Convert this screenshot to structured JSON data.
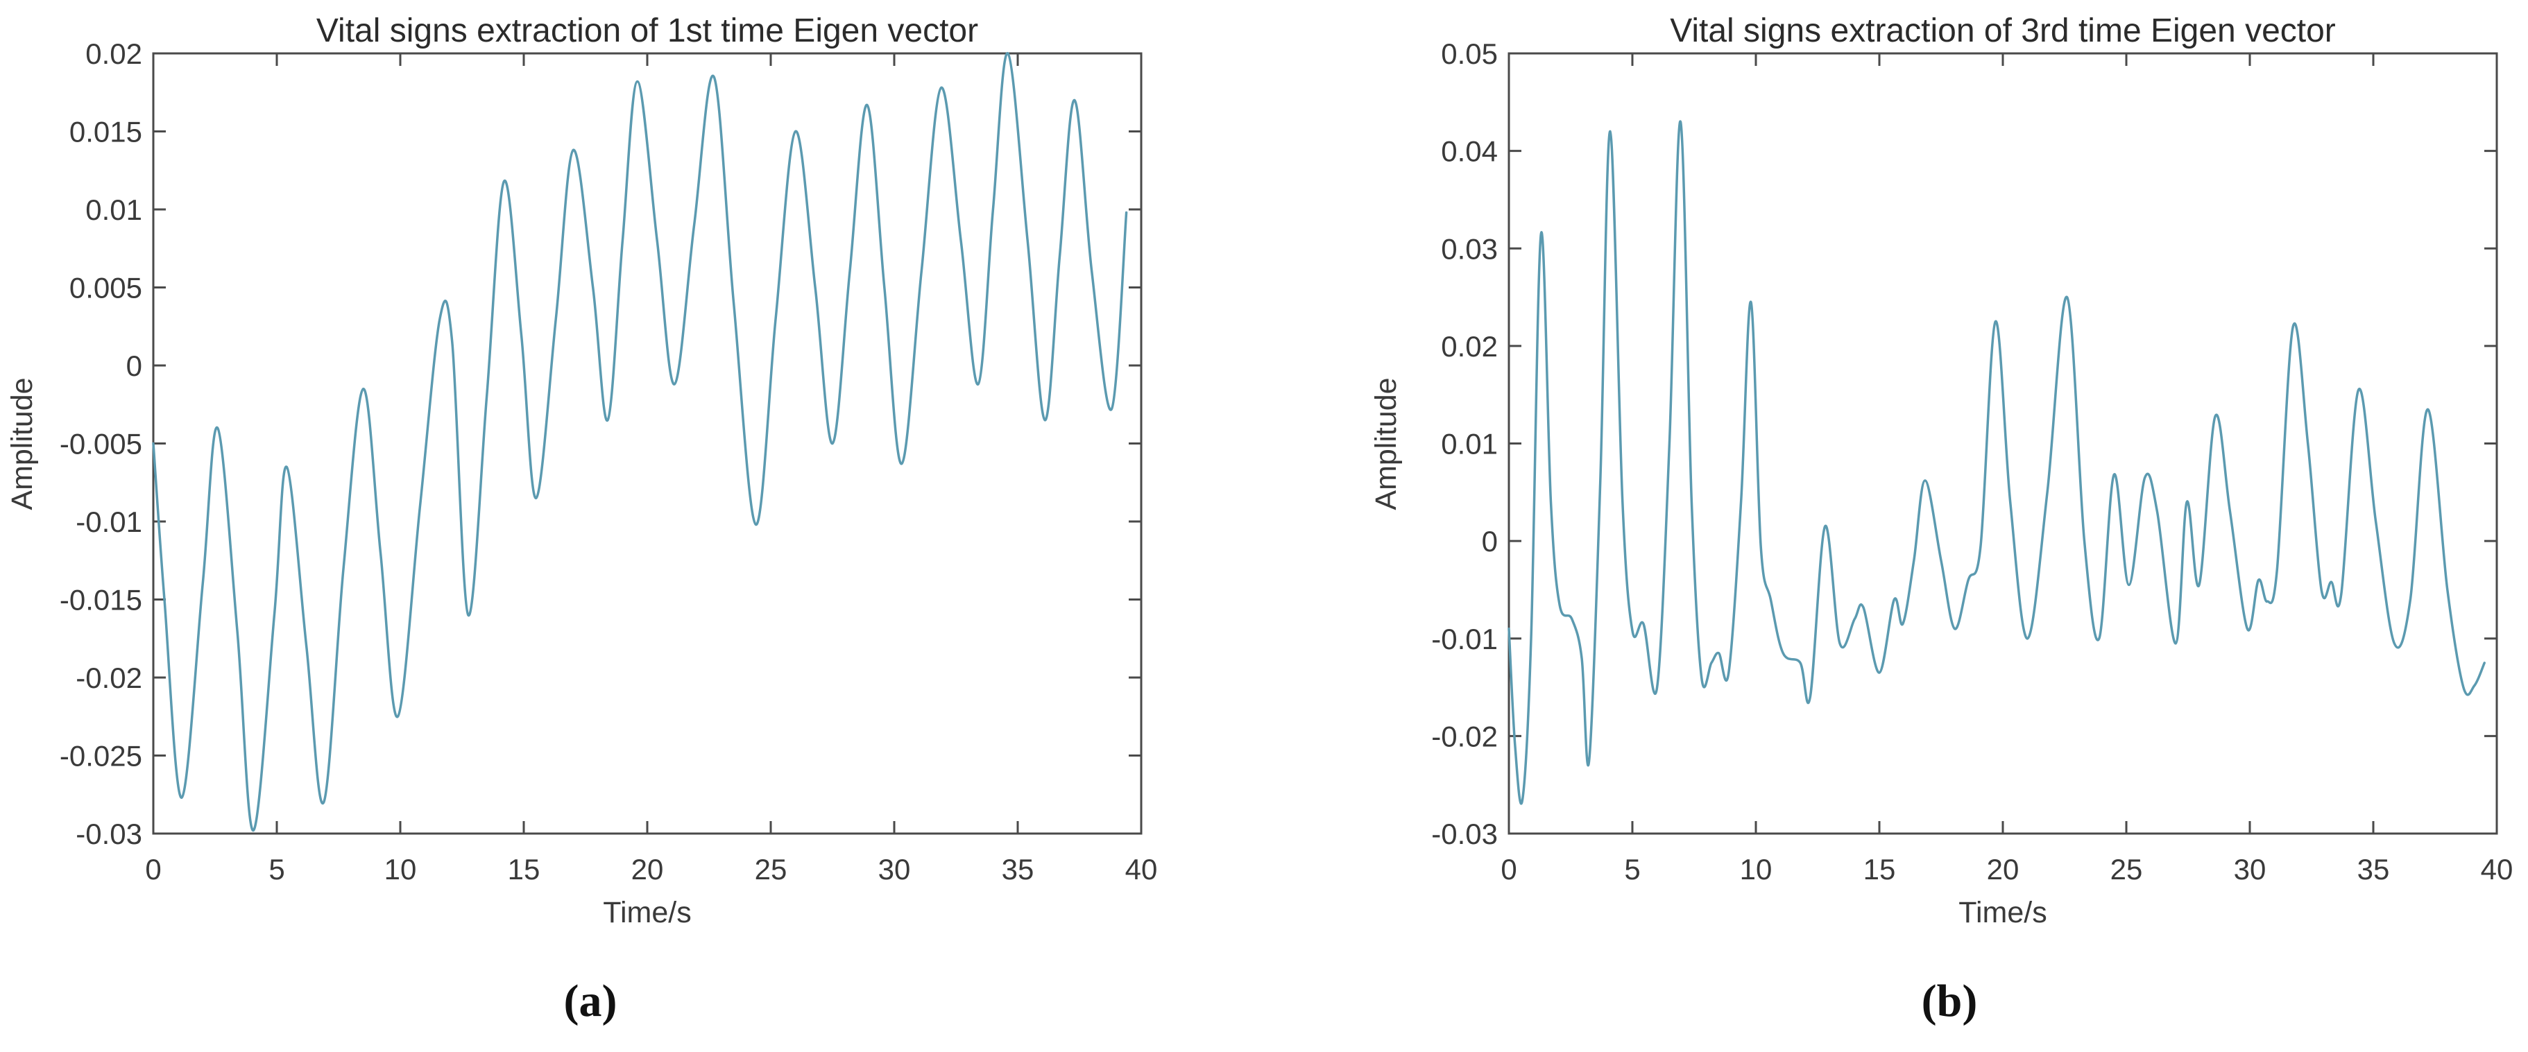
{
  "chart_data": [
    {
      "type": "line",
      "title": "Vital signs extraction of 1st time Eigen vector",
      "xlabel": "Time/s",
      "ylabel": "Amplitude",
      "caption": "(a)",
      "xlim": [
        0,
        40
      ],
      "ylim": [
        -0.03,
        0.02
      ],
      "grid": false,
      "legend": "none",
      "x_tick_values": [
        0,
        5,
        10,
        15,
        20,
        25,
        30,
        35,
        40
      ],
      "x_tick_labels": [
        "0",
        "5",
        "10",
        "15",
        "20",
        "25",
        "30",
        "35",
        "40"
      ],
      "y_tick_values": [
        0.02,
        0.015,
        0.01,
        0.005,
        0,
        -0.005,
        -0.01,
        -0.015,
        -0.02,
        -0.025,
        -0.03
      ],
      "y_tick_labels": [
        "0.02",
        "0.015",
        "0.01",
        "0.005",
        "0",
        "-0.005",
        "-0.01",
        "-0.015",
        "-0.02",
        "-0.025",
        "-0.03"
      ],
      "line_color": "#5b9ab0",
      "axis_color": "#4a4a4a",
      "x": [
        0,
        0.45,
        1.15,
        2.0,
        2.6,
        3.4,
        4.05,
        4.9,
        5.4,
        6.2,
        6.9,
        7.7,
        8.5,
        9.2,
        9.9,
        10.8,
        11.6,
        12.1,
        12.75,
        13.5,
        14.2,
        14.9,
        15.5,
        16.3,
        17.0,
        17.8,
        18.4,
        19.0,
        19.6,
        20.4,
        21.1,
        21.9,
        22.7,
        23.5,
        24.4,
        25.2,
        26.0,
        26.8,
        27.5,
        28.2,
        28.9,
        29.6,
        30.3,
        31.1,
        31.9,
        32.7,
        33.4,
        34.0,
        34.6,
        35.4,
        36.1,
        36.7,
        37.3,
        38.0,
        38.8,
        39.4
      ],
      "y": [
        -0.005,
        -0.015,
        -0.0277,
        -0.014,
        -0.004,
        -0.017,
        -0.0298,
        -0.016,
        -0.0065,
        -0.018,
        -0.028,
        -0.013,
        -0.0015,
        -0.012,
        -0.0225,
        -0.009,
        0.003,
        0.0015,
        -0.016,
        -0.002,
        0.0118,
        0.002,
        -0.0085,
        0.003,
        0.0138,
        0.005,
        -0.0035,
        0.008,
        0.0182,
        0.008,
        -0.0012,
        0.009,
        0.0185,
        0.004,
        -0.0102,
        0.003,
        0.015,
        0.005,
        -0.005,
        0.006,
        0.0167,
        0.005,
        -0.0063,
        0.006,
        0.0178,
        0.008,
        -0.0012,
        0.01,
        0.02,
        0.008,
        -0.0035,
        0.007,
        0.017,
        0.006,
        -0.0028,
        0.0098
      ]
    },
    {
      "type": "line",
      "title": "Vital signs extraction of 3rd time Eigen vector",
      "xlabel": "Time/s",
      "ylabel": "Amplitude",
      "caption": "(b)",
      "xlim": [
        0,
        40
      ],
      "ylim": [
        -0.03,
        0.05
      ],
      "grid": false,
      "legend": "none",
      "x_tick_values": [
        0,
        5,
        10,
        15,
        20,
        25,
        30,
        35,
        40
      ],
      "x_tick_labels": [
        "0",
        "5",
        "10",
        "15",
        "20",
        "25",
        "30",
        "35",
        "40"
      ],
      "y_tick_values": [
        0.05,
        0.04,
        0.03,
        0.02,
        0.01,
        0,
        -0.01,
        -0.02,
        -0.03
      ],
      "y_tick_labels": [
        "0.05",
        "0.04",
        "0.03",
        "0.02",
        "0.01",
        "0",
        "-0.01",
        "-0.02",
        "-0.03"
      ],
      "line_color": "#5b9ab0",
      "axis_color": "#4a4a4a",
      "x": [
        0,
        0.25,
        0.55,
        0.9,
        1.3,
        1.7,
        2.05,
        2.55,
        2.95,
        3.25,
        3.7,
        4.1,
        4.6,
        5.0,
        5.45,
        6.0,
        6.5,
        6.95,
        7.4,
        7.8,
        8.2,
        8.5,
        8.9,
        9.4,
        9.8,
        10.2,
        10.6,
        11.1,
        11.8,
        12.2,
        12.8,
        13.4,
        14.0,
        14.35,
        15.0,
        15.6,
        15.95,
        16.4,
        16.85,
        17.5,
        18.05,
        18.6,
        19.1,
        19.7,
        20.3,
        21.0,
        21.8,
        22.6,
        23.3,
        23.9,
        24.5,
        25.1,
        25.75,
        26.25,
        27.0,
        27.45,
        27.95,
        28.6,
        29.2,
        29.9,
        30.35,
        30.7,
        31.1,
        31.75,
        32.35,
        32.9,
        33.3,
        33.7,
        34.4,
        35.1,
        35.85,
        36.5,
        37.2,
        38.0,
        38.65,
        39.1,
        39.5
      ],
      "y": [
        -0.009,
        -0.021,
        -0.0265,
        -0.01,
        0.0315,
        0.004,
        -0.0065,
        -0.008,
        -0.012,
        -0.0225,
        0.006,
        0.042,
        0.004,
        -0.0092,
        -0.0085,
        -0.015,
        0.01,
        0.043,
        0.004,
        -0.014,
        -0.0125,
        -0.0115,
        -0.0135,
        0.004,
        0.0245,
        -0.0005,
        -0.006,
        -0.0115,
        -0.0125,
        -0.016,
        0.0015,
        -0.0105,
        -0.008,
        -0.0068,
        -0.0135,
        -0.006,
        -0.0085,
        -0.002,
        0.0062,
        -0.002,
        -0.009,
        -0.004,
        -0.0005,
        0.0225,
        0.004,
        -0.01,
        0.005,
        0.025,
        0.0,
        -0.01,
        0.0068,
        -0.0045,
        0.0065,
        0.003,
        -0.0105,
        0.004,
        -0.0045,
        0.0128,
        0.003,
        -0.009,
        -0.004,
        -0.0062,
        -0.003,
        0.022,
        0.01,
        -0.005,
        -0.0042,
        -0.0055,
        0.0155,
        0.002,
        -0.0105,
        -0.006,
        0.0135,
        -0.005,
        -0.015,
        -0.0148,
        -0.0125
      ]
    }
  ]
}
